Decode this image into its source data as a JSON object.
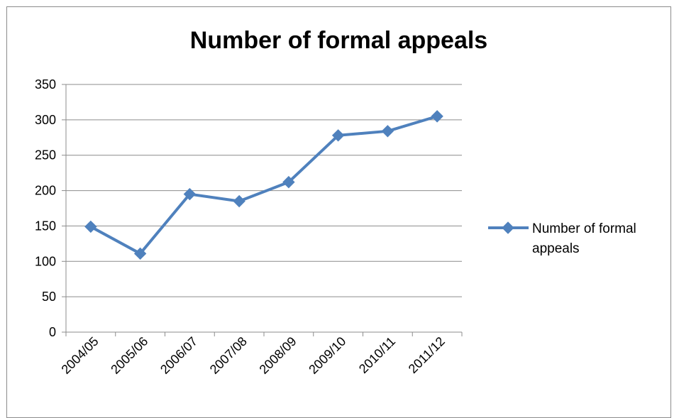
{
  "chart_data": {
    "type": "line",
    "title": "Number of formal appeals",
    "categories": [
      "2004/05",
      "2005/06",
      "2006/07",
      "2007/08",
      "2008/09",
      "2009/10",
      "2010/11",
      "2011/12"
    ],
    "series": [
      {
        "name": "Number of formal appeals",
        "values": [
          149,
          111,
          195,
          185,
          212,
          278,
          284,
          305
        ],
        "color": "#4f81bd",
        "marker": "diamond"
      }
    ],
    "ylim": [
      0,
      350
    ],
    "yticks": [
      0,
      50,
      100,
      150,
      200,
      250,
      300,
      350
    ],
    "grid": true,
    "legend": {
      "position": "right",
      "line1": "Number of formal",
      "line2": "appeals"
    }
  }
}
